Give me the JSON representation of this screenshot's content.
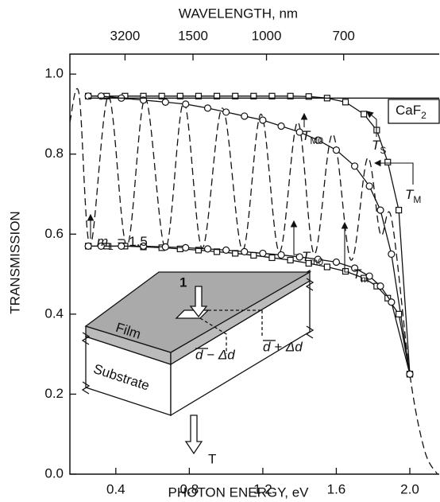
{
  "chart_data": {
    "type": "line",
    "title": "WAVELENGTH, nm",
    "x_label": "PHOTON ENERGY, eV",
    "y_label": "TRANSMISSION",
    "xlim": [
      0.15,
      2.16
    ],
    "ylim": [
      0,
      1.05
    ],
    "xticks": [
      {
        "value": 0.4,
        "label": "0.4"
      },
      {
        "value": 0.8,
        "label": "0.8"
      },
      {
        "value": 1.2,
        "label": "1.2"
      },
      {
        "value": 1.6,
        "label": "1.6"
      },
      {
        "value": 2.0,
        "label": "2.0"
      }
    ],
    "yticks": [
      {
        "value": 0,
        "label": "0.0"
      },
      {
        "value": 0.2,
        "label": "0.2"
      },
      {
        "value": 0.4,
        "label": "0.4"
      },
      {
        "value": 0.6,
        "label": "0.6"
      },
      {
        "value": 0.8,
        "label": "0.8"
      },
      {
        "value": 1.0,
        "label": "1.0"
      }
    ],
    "x2ticks": [
      {
        "value": 0.45,
        "label": "3200"
      },
      {
        "value": 0.82,
        "label": "1500"
      },
      {
        "value": 1.22,
        "label": "1000"
      },
      {
        "value": 1.64,
        "label": "700"
      }
    ],
    "series": [
      {
        "color": "#111111",
        "marker": "none",
        "dash": true,
        "x": [
          0.15,
          0.2,
          0.26,
          0.36,
          0.46,
          0.56,
          0.67,
          0.77,
          0.87,
          0.98,
          1.09,
          1.19,
          1.29,
          1.39,
          1.48,
          1.58,
          1.68,
          1.77,
          1.84,
          1.9,
          2.0,
          2.08,
          2.15
        ],
        "values": [
          0.88,
          0.95,
          0.57,
          0.945,
          0.57,
          0.94,
          0.565,
          0.93,
          0.565,
          0.915,
          0.56,
          0.9,
          0.555,
          0.88,
          0.55,
          0.85,
          0.535,
          0.79,
          0.6,
          0.64,
          0.25,
          0.06,
          0.0
        ]
      },
      {
        "color": "#111111",
        "marker": "square",
        "dash": false,
        "x": [
          0.25,
          0.35,
          0.45,
          0.55,
          0.65,
          0.75,
          0.85,
          0.95,
          1.05,
          1.15,
          1.25,
          1.35,
          1.45,
          1.55,
          1.65,
          1.75,
          1.82,
          1.88,
          1.94,
          2.0
        ],
        "values": [
          0.945,
          0.945,
          0.945,
          0.945,
          0.945,
          0.945,
          0.945,
          0.945,
          0.945,
          0.945,
          0.945,
          0.945,
          0.944,
          0.94,
          0.93,
          0.9,
          0.86,
          0.78,
          0.66,
          0.25
        ]
      },
      {
        "color": "#111111",
        "marker": "circle",
        "dash": false,
        "x": [
          0.25,
          0.32,
          0.43,
          0.55,
          0.67,
          0.78,
          0.9,
          1.0,
          1.1,
          1.2,
          1.3,
          1.4,
          1.5,
          1.6,
          1.7,
          1.78,
          1.84,
          1.9,
          2.0
        ],
        "values": [
          0.945,
          0.945,
          0.94,
          0.935,
          0.93,
          0.925,
          0.915,
          0.905,
          0.895,
          0.885,
          0.87,
          0.855,
          0.835,
          0.81,
          0.77,
          0.72,
          0.66,
          0.55,
          0.25
        ]
      },
      {
        "color": "#111111",
        "marker": "square",
        "dash": false,
        "x": [
          0.25,
          0.35,
          0.45,
          0.55,
          0.65,
          0.75,
          0.85,
          0.95,
          1.05,
          1.15,
          1.25,
          1.35,
          1.45,
          1.55,
          1.65,
          1.75,
          1.82,
          1.88,
          1.94,
          2.0
        ],
        "values": [
          0.57,
          0.57,
          0.57,
          0.568,
          0.566,
          0.563,
          0.56,
          0.556,
          0.552,
          0.547,
          0.541,
          0.535,
          0.527,
          0.518,
          0.507,
          0.49,
          0.47,
          0.44,
          0.4,
          0.25
        ]
      },
      {
        "color": "#111111",
        "marker": "circle",
        "dash": false,
        "x": [
          0.25,
          0.32,
          0.43,
          0.55,
          0.67,
          0.78,
          0.9,
          1.0,
          1.1,
          1.2,
          1.3,
          1.4,
          1.5,
          1.6,
          1.7,
          1.78,
          1.84,
          1.9,
          2.0
        ],
        "values": [
          0.57,
          0.57,
          0.57,
          0.57,
          0.568,
          0.566,
          0.563,
          0.56,
          0.556,
          0.552,
          0.548,
          0.543,
          0.537,
          0.53,
          0.515,
          0.495,
          0.47,
          0.43,
          0.25
        ]
      },
      {
        "color": "#111111",
        "marker": "none",
        "dash": false,
        "x": [
          0.25,
          2.16
        ],
        "values": [
          0.94,
          0.94
        ]
      }
    ],
    "annotations": [
      {
        "text": "T",
        "sub": "M0"
      },
      {
        "text": "T",
        "sub": "S"
      },
      {
        "text": "T",
        "sub": "M"
      },
      {
        "text": "T",
        "sub": "m0"
      },
      {
        "text": "T",
        "sub": "m"
      },
      {
        "text": "m",
        "sub": "1",
        "after": " = 1.5"
      },
      {
        "text": "CaF",
        "sub": "2"
      }
    ],
    "inset": {
      "film": "Film",
      "substrate": "Substrate",
      "left_thickness": "d − Δd",
      "right_thickness": "d + Δd",
      "incident": "1",
      "transmitted": "T"
    }
  }
}
